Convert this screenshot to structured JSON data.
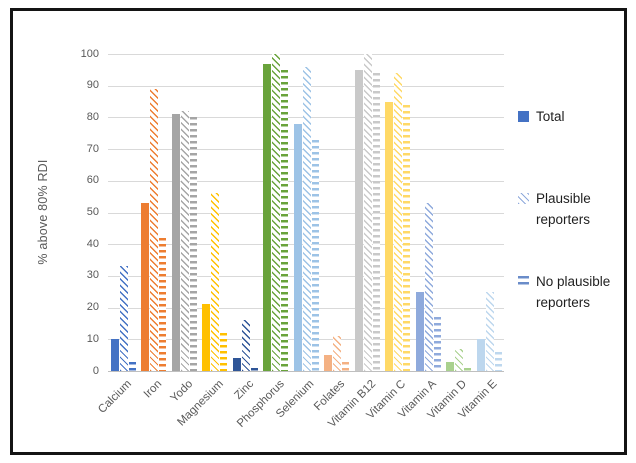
{
  "frame": {
    "border_color": "#141414"
  },
  "chart_data": {
    "type": "bar",
    "title": "",
    "xlabel": "",
    "ylabel": "% above 80% RDI",
    "ylim": [
      0,
      100
    ],
    "yticks": [
      0,
      10,
      20,
      30,
      40,
      50,
      60,
      70,
      80,
      90,
      100
    ],
    "grid": true,
    "legend_position": "right",
    "categories": [
      "Calcium",
      "Iron",
      "Yodo",
      "Magnesium",
      "Zinc",
      "Phosphorus",
      "Selenium",
      "Folates",
      "Vitamin B12",
      "Vitamin C",
      "Vitamin A",
      "Vitamin D",
      "Vitamin E"
    ],
    "category_colors": [
      "#4472C4",
      "#ED7D31",
      "#A5A5A5",
      "#FFC000",
      "#2F5597",
      "#69A33B",
      "#9DC3E6",
      "#F4B183",
      "#C9C9C9",
      "#FFD966",
      "#8FAADC",
      "#A9D18E",
      "#BDD7EE"
    ],
    "series": [
      {
        "name": "Total",
        "pattern": "solid",
        "values": [
          10,
          53,
          81,
          21,
          4,
          97,
          78,
          5,
          95,
          85,
          25,
          3,
          10
        ]
      },
      {
        "name": "Plausible reporters",
        "pattern": "diagonal-stripes",
        "values": [
          33,
          89,
          82,
          56,
          16,
          100,
          96,
          11,
          100,
          94,
          53,
          7,
          25
        ]
      },
      {
        "name": "No plausible reporters",
        "pattern": "horizontal-dashes",
        "values": [
          3,
          42,
          80,
          12,
          1,
          95,
          73,
          3,
          94,
          84,
          17,
          1,
          6
        ]
      }
    ],
    "legend": [
      {
        "label": "Total",
        "pattern": "solid",
        "color": "#4472C4"
      },
      {
        "label": "Plausible reporters",
        "pattern": "diagonal-stripes",
        "color": "#8FAADC"
      },
      {
        "label": "No plausible reporters",
        "pattern": "horizontal-dashes",
        "color": "#6A8CC9"
      }
    ]
  }
}
